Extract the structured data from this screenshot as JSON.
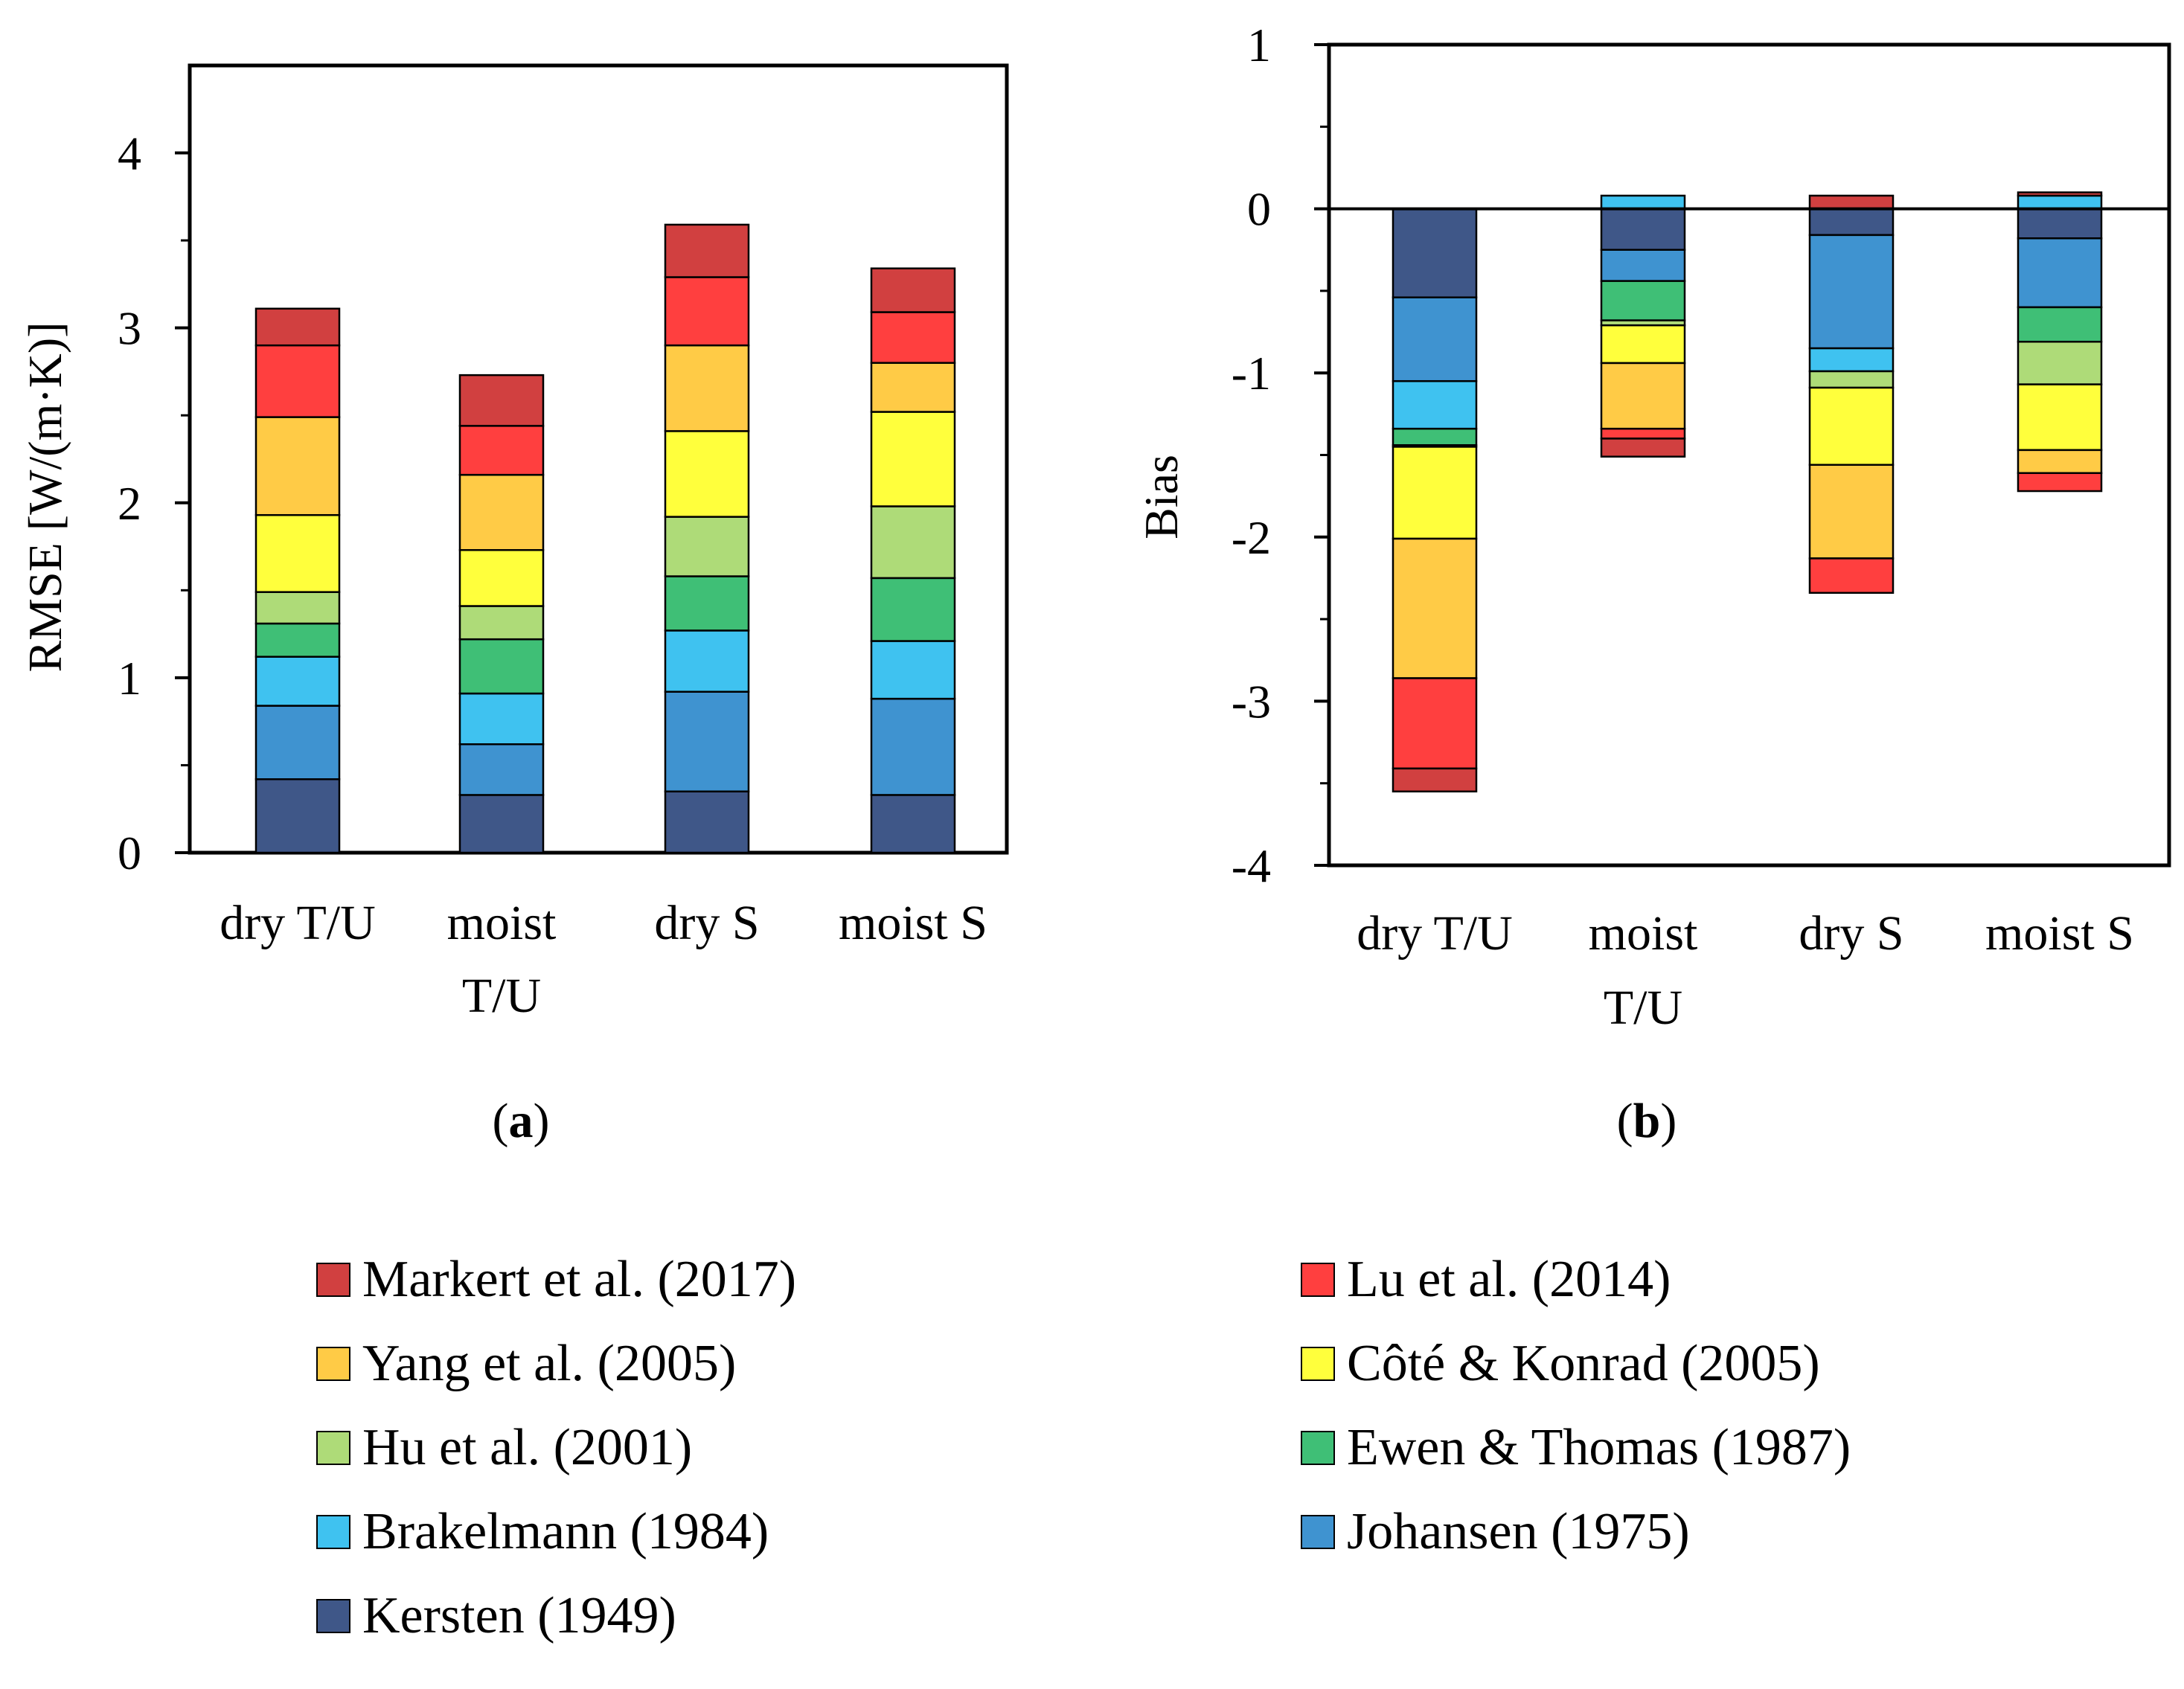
{
  "chart_data": [
    {
      "type": "bar",
      "stacked": true,
      "panel_label": "(a)",
      "ylabel": "RMSE [W/(m·K)]",
      "xlabel": "",
      "ylim": [
        0,
        4.5
      ],
      "yticks": [
        "0",
        "1",
        "2",
        "3",
        "4"
      ],
      "categories": [
        "dry T/U",
        "moist T/U",
        "dry S",
        "moist S"
      ],
      "series": [
        {
          "name": "Kersten (1949)",
          "values": [
            0.42,
            0.33,
            0.35,
            0.33
          ]
        },
        {
          "name": "Johansen (1975)",
          "values": [
            0.42,
            0.29,
            0.57,
            0.55
          ]
        },
        {
          "name": "Brakelmann (1984)",
          "values": [
            0.28,
            0.29,
            0.35,
            0.33
          ]
        },
        {
          "name": "Ewen & Thomas (1987)",
          "values": [
            0.19,
            0.31,
            0.31,
            0.36
          ]
        },
        {
          "name": "Hu et al. (2001)",
          "values": [
            0.18,
            0.19,
            0.34,
            0.41
          ]
        },
        {
          "name": "Côté & Konrad (2005)",
          "values": [
            0.44,
            0.32,
            0.49,
            0.54
          ]
        },
        {
          "name": "Yang et al. (2005)",
          "values": [
            0.56,
            0.43,
            0.49,
            0.28
          ]
        },
        {
          "name": "Lu et al. (2014)",
          "values": [
            0.41,
            0.28,
            0.39,
            0.29
          ]
        },
        {
          "name": "Markert et al. (2017)",
          "values": [
            0.21,
            0.29,
            0.3,
            0.25
          ]
        }
      ]
    },
    {
      "type": "bar",
      "stacked": true,
      "panel_label": "(b)",
      "ylabel": "Bias",
      "xlabel": "",
      "ylim": [
        -4,
        1
      ],
      "yticks": [
        "1",
        "0",
        "-1",
        "-2",
        "-3",
        "-4"
      ],
      "categories": [
        "dry T/U",
        "moist T/U",
        "dry S",
        "moist S"
      ],
      "series": [
        {
          "name": "Kersten (1949)",
          "values": [
            -0.54,
            -0.25,
            -0.16,
            -0.18
          ]
        },
        {
          "name": "Johansen (1975)",
          "values": [
            -0.51,
            -0.19,
            -0.69,
            -0.42
          ]
        },
        {
          "name": "Brakelmann (1984)",
          "values": [
            -0.29,
            0.08,
            -0.14,
            0.08
          ]
        },
        {
          "name": "Ewen & Thomas (1987)",
          "values": [
            -0.1,
            -0.24,
            0.0,
            -0.21
          ]
        },
        {
          "name": "Hu et al. (2001)",
          "values": [
            -0.01,
            -0.03,
            -0.1,
            -0.26
          ]
        },
        {
          "name": "Côté & Konrad (2005)",
          "values": [
            -0.56,
            -0.23,
            -0.47,
            -0.4
          ]
        },
        {
          "name": "Yang et al. (2005)",
          "values": [
            -0.85,
            -0.4,
            -0.57,
            -0.14
          ]
        },
        {
          "name": "Lu et al. (2014)",
          "values": [
            -0.55,
            -0.06,
            -0.21,
            -0.11
          ]
        },
        {
          "name": "Markert et al. (2017)",
          "values": [
            -0.14,
            -0.11,
            0.08,
            0.02
          ]
        }
      ]
    }
  ],
  "series_colors": {
    "Kersten (1949)": "#3f5788",
    "Johansen (1975)": "#3f93d0",
    "Brakelmann (1984)": "#3fc2f0",
    "Ewen & Thomas (1987)": "#3fbf76",
    "Hu et al. (2001)": "#aedb78",
    "Côté & Konrad (2005)": "#ffff3c",
    "Yang et al. (2005)": "#ffcb46",
    "Lu et al. (2014)": "#ff3f3f",
    "Markert et al. (2017)": "#d14040"
  },
  "legend": [
    "Markert et al. (2017)",
    "Lu et al. (2014)",
    "Yang et al. (2005)",
    "Côté & Konrad (2005)",
    "Hu et al. (2001)",
    "Ewen & Thomas (1987)",
    "Brakelmann (1984)",
    "Johansen (1975)",
    "Kersten (1949)"
  ]
}
